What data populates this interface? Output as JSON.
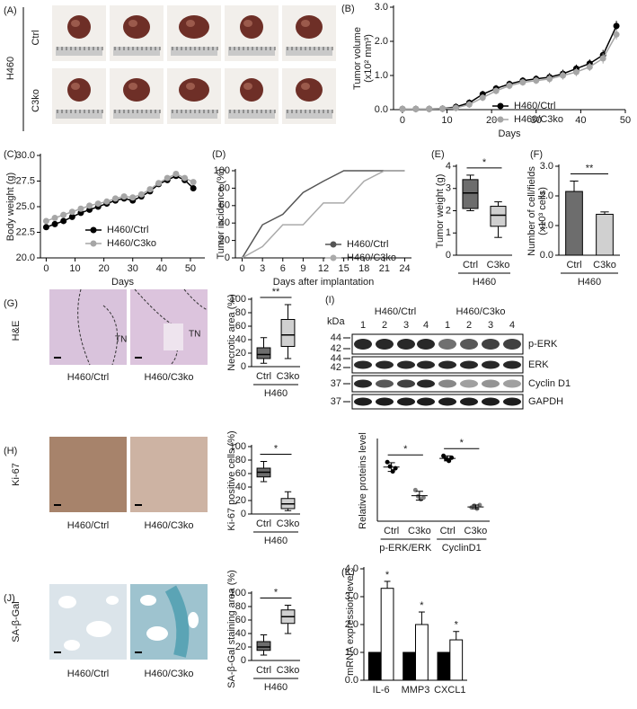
{
  "figure": {
    "panel_A": {
      "label": "(A)",
      "cell_line": "H460",
      "rows": [
        "Ctrl",
        "C3ko"
      ]
    },
    "panel_G": {
      "label": "(G)",
      "stain": "H&E",
      "captions": [
        "H460/Ctrl",
        "H460/C3ko"
      ],
      "regions": [
        "TN",
        "TN"
      ]
    },
    "panel_H": {
      "label": "(H)",
      "stain": "Ki-67",
      "captions": [
        "H460/Ctrl",
        "H460/C3ko"
      ]
    },
    "panel_I": {
      "label": "(I)",
      "unit": "kDa",
      "groups": [
        "H460/Ctrl",
        "H460/C3ko"
      ],
      "lanes": [
        "1",
        "2",
        "3",
        "4",
        "1",
        "2",
        "3",
        "4"
      ],
      "markers": [
        "44",
        "42",
        "44",
        "42",
        "37",
        "37"
      ],
      "proteins": [
        "p-ERK",
        "ERK",
        "Cyclin D1",
        "GAPDH"
      ]
    },
    "panel_J": {
      "label": "(J)",
      "stain": "SA-β-Gal",
      "captions": [
        "H460/Ctrl",
        "H460/C3ko"
      ]
    }
  },
  "chart_data": [
    {
      "type": "line",
      "panel": "(B)",
      "ylabel": [
        "Tumor volume",
        "(x10² mm³)"
      ],
      "xlabel": "Days",
      "x": [
        0,
        3,
        6,
        9,
        12,
        15,
        18,
        21,
        24,
        27,
        30,
        33,
        36,
        39,
        42,
        45,
        48
      ],
      "series": [
        {
          "name": "H460/Ctrl",
          "color": "#000000",
          "values": [
            0.02,
            0.02,
            0.02,
            0.03,
            0.08,
            0.2,
            0.45,
            0.62,
            0.75,
            0.85,
            0.9,
            0.95,
            1.05,
            1.2,
            1.35,
            1.6,
            2.45
          ],
          "errors": [
            0.1,
            0.1,
            0.1,
            0.1,
            0.1,
            0.1,
            0.1,
            0.1,
            0.1,
            0.1,
            0.1,
            0.12,
            0.12,
            0.12,
            0.12,
            0.15,
            0.15
          ]
        },
        {
          "name": "H460/C3ko",
          "color": "#a6a6a6",
          "values": [
            0.02,
            0.02,
            0.02,
            0.03,
            0.05,
            0.15,
            0.35,
            0.55,
            0.7,
            0.8,
            0.85,
            0.9,
            1.0,
            1.1,
            1.25,
            1.5,
            2.2
          ],
          "errors": [
            0.1,
            0.1,
            0.1,
            0.1,
            0.1,
            0.1,
            0.1,
            0.1,
            0.1,
            0.1,
            0.1,
            0.12,
            0.12,
            0.12,
            0.12,
            0.15,
            0.15
          ]
        }
      ],
      "xlim": [
        -2,
        50
      ],
      "xticks": [
        0,
        10,
        20,
        30,
        40,
        50
      ],
      "ylim": [
        0,
        3
      ],
      "yticks": [
        {
          "value": 0,
          "label": "0.0"
        },
        {
          "value": 1,
          "label": "1.0"
        },
        {
          "value": 2,
          "label": "2.0"
        },
        {
          "value": 3,
          "label": "3.0"
        }
      ],
      "markers": true
    },
    {
      "type": "line",
      "panel": "(C)",
      "ylabel": "Body weight (g)",
      "xlabel": "Days",
      "x": [
        0,
        3,
        6,
        9,
        12,
        15,
        18,
        21,
        24,
        27,
        30,
        33,
        36,
        39,
        42,
        45,
        48,
        51
      ],
      "series": [
        {
          "name": "H460/Ctrl",
          "color": "#000000",
          "values": [
            23.0,
            23.3,
            23.6,
            24.0,
            24.4,
            24.7,
            25.0,
            25.3,
            25.6,
            25.8,
            25.6,
            26.0,
            26.5,
            27.2,
            27.6,
            28.0,
            27.6,
            26.8
          ]
        },
        {
          "name": "H460/C3ko",
          "color": "#a6a6a6",
          "values": [
            23.6,
            23.9,
            24.2,
            24.5,
            24.8,
            25.1,
            25.3,
            25.5,
            25.8,
            26.0,
            25.9,
            26.2,
            26.7,
            27.3,
            27.8,
            28.2,
            27.8,
            27.4
          ]
        }
      ],
      "xlim": [
        -2,
        55
      ],
      "xticks": [
        0,
        10,
        20,
        30,
        40,
        50
      ],
      "ylim": [
        20,
        30
      ],
      "yticks": [
        {
          "value": 20,
          "label": "20.0"
        },
        {
          "value": 22.5,
          "label": "22.5"
        },
        {
          "value": 25,
          "label": "25.0"
        },
        {
          "value": 27.5,
          "label": "27.5"
        },
        {
          "value": 30,
          "label": "30.0"
        }
      ],
      "markers": true
    },
    {
      "type": "line",
      "panel": "(D)",
      "ylabel": "Tumor incidence (%)",
      "xlabel": "Days after implantation",
      "x": [
        0,
        3,
        6,
        9,
        12,
        15,
        18,
        21,
        24
      ],
      "series": [
        {
          "name": "H460/Ctrl",
          "color": "#555555",
          "values": [
            0,
            38,
            50,
            75,
            88,
            100,
            100,
            100,
            100
          ]
        },
        {
          "name": "H460/C3ko",
          "color": "#aaaaaa",
          "values": [
            0,
            13,
            38,
            38,
            63,
            63,
            88,
            100,
            100
          ]
        }
      ],
      "xlim": [
        -1,
        25
      ],
      "xticks": [
        0,
        3,
        6,
        9,
        12,
        15,
        18,
        21,
        24
      ],
      "ylim": [
        0,
        100
      ],
      "yticks": [
        0,
        20,
        40,
        60,
        80,
        100
      ],
      "markers": false
    },
    {
      "type": "box",
      "panel": "(E)",
      "ylabel": "Tumor weight (g)",
      "categories": [
        "Ctrl",
        "C3ko"
      ],
      "boxes": [
        [
          2.0,
          2.1,
          2.8,
          3.4,
          3.6
        ],
        [
          0.8,
          1.3,
          1.8,
          2.2,
          2.4
        ]
      ],
      "colors": [
        "#6d6d6d",
        "#d0d0d0"
      ],
      "ylim": [
        0,
        4
      ],
      "yticks": [
        0,
        1,
        2,
        3,
        4
      ],
      "group_label": "H460",
      "annotation": "*"
    },
    {
      "type": "bar",
      "panel": "(F)",
      "ylabel": [
        "Number of cell/fields",
        "(x10³ cells)"
      ],
      "categories": [
        "Ctrl",
        "C3ko"
      ],
      "values": [
        2.15,
        1.38
      ],
      "errors": [
        0.35,
        0.08
      ],
      "colors": [
        "#6d6d6d",
        "#d0d0d0"
      ],
      "ylim": [
        0,
        3
      ],
      "yticks": [
        {
          "value": 0,
          "label": "0.0"
        },
        {
          "value": 1,
          "label": "1.0"
        },
        {
          "value": 2,
          "label": "2.0"
        },
        {
          "value": 3,
          "label": "3.0"
        }
      ],
      "group_label": "H460",
      "annotation": "**"
    },
    {
      "type": "box",
      "ylabel": "Necrotic area (%)",
      "categories": [
        "Ctrl",
        "C3ko"
      ],
      "boxes": [
        [
          5,
          12,
          18,
          28,
          43
        ],
        [
          12,
          30,
          47,
          70,
          92
        ]
      ],
      "colors": [
        "#6d6d6d",
        "#d0d0d0"
      ],
      "ylim": [
        0,
        100
      ],
      "yticks": [
        0,
        20,
        40,
        60,
        80,
        100
      ],
      "group_label": "H460",
      "annotation": "**"
    },
    {
      "type": "box",
      "ylabel": "Ki-67 positive cells (%)",
      "categories": [
        "Ctrl",
        "C3ko"
      ],
      "boxes": [
        [
          48,
          55,
          62,
          68,
          78
        ],
        [
          5,
          8,
          15,
          23,
          33
        ]
      ],
      "colors": [
        "#6d6d6d",
        "#d0d0d0"
      ],
      "ylim": [
        0,
        100
      ],
      "yticks": [
        0,
        20,
        40,
        60,
        80,
        100
      ],
      "group_label": "H460",
      "annotation": "*"
    },
    {
      "type": "dot",
      "ylabel": "Relative proteins level",
      "categories": [
        "Ctrl",
        "C3ko",
        "Ctrl",
        "C3ko"
      ],
      "points": [
        [
          0.95,
          0.88,
          0.8,
          0.85
        ],
        [
          0.5,
          0.4,
          0.35,
          0.38
        ],
        [
          1.05,
          1.0,
          0.97,
          1.02
        ],
        [
          0.22,
          0.25,
          0.2,
          0.26
        ]
      ],
      "means": [
        0.87,
        0.41,
        1.01,
        0.23
      ],
      "sd": [
        0.07,
        0.07,
        0.04,
        0.03
      ],
      "colors": [
        "#000000",
        "#808080",
        "#000000",
        "#808080"
      ],
      "ylim": [
        0,
        1.3
      ],
      "groups": [
        "p-ERK/ERK",
        "CyclinD1"
      ],
      "annotations": [
        "*",
        "*"
      ]
    },
    {
      "type": "box",
      "ylabel": "SA-β-Gal staining area (%)",
      "categories": [
        "Ctrl",
        "C3ko"
      ],
      "boxes": [
        [
          8,
          15,
          20,
          28,
          38
        ],
        [
          40,
          55,
          65,
          75,
          82
        ]
      ],
      "colors": [
        "#6d6d6d",
        "#d0d0d0"
      ],
      "ylim": [
        0,
        100
      ],
      "yticks": [
        0,
        20,
        40,
        60,
        80,
        100
      ],
      "group_label": "H460",
      "annotation": "*"
    },
    {
      "type": "bar",
      "panel": "(K)",
      "ylabel": "mRNA expression level",
      "categories": [
        "IL-6",
        "MMP3",
        "CXCL1"
      ],
      "series": [
        {
          "color": "#000000",
          "values": [
            1,
            1,
            1
          ]
        },
        {
          "color": "#ffffff",
          "values": [
            3.3,
            2.0,
            1.45
          ],
          "errors": [
            0.25,
            0.45,
            0.3
          ],
          "annotations": [
            "*",
            "*",
            "*"
          ]
        }
      ],
      "ylim": [
        0,
        4
      ],
      "yticks": [
        {
          "value": 0,
          "label": "0.0"
        },
        {
          "value": 1,
          "label": "1.0"
        },
        {
          "value": 2,
          "label": "2.0"
        },
        {
          "value": 3,
          "label": "3.0"
        },
        {
          "value": 4,
          "label": "4.0"
        }
      ]
    }
  ]
}
